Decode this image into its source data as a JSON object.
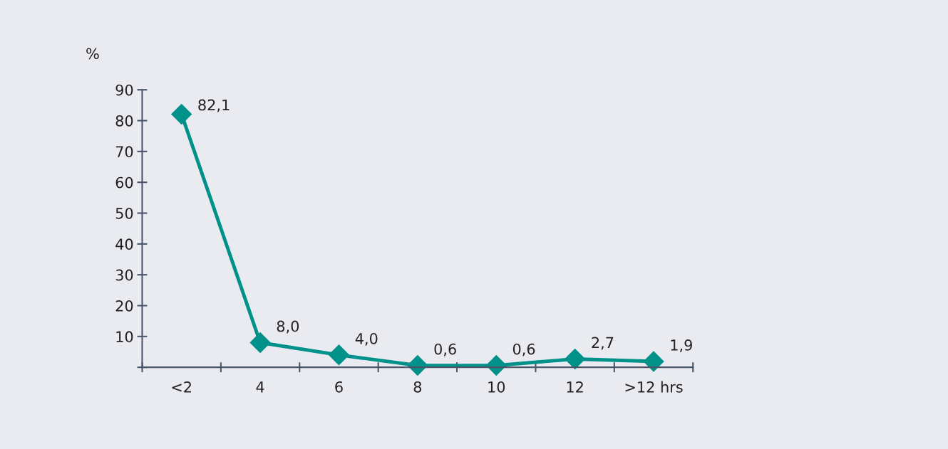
{
  "chart_data": {
    "type": "line",
    "ylabel": "%",
    "categories": [
      "<2",
      "4",
      "6",
      "8",
      "10",
      "12",
      ">12 hrs"
    ],
    "series": [
      {
        "color": "#00918a",
        "values": [
          82.1,
          8.0,
          4.0,
          0.6,
          0.6,
          2.7,
          1.9
        ],
        "value_labels": [
          "82,1",
          "8,0",
          "4,0",
          "0,6",
          "0,6",
          "2,7",
          "1,9"
        ]
      }
    ],
    "ylim": [
      0,
      90
    ],
    "yticks": [
      {
        "value": 0,
        "label": null
      },
      10,
      20,
      30,
      40,
      50,
      60,
      70,
      80,
      90
    ],
    "marker": "diamond",
    "line_style": "solid",
    "grid": false,
    "legend": false
  }
}
